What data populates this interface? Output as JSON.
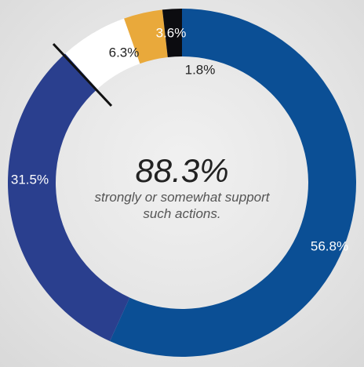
{
  "chart_data": {
    "type": "donut",
    "categories": [
      null,
      null,
      null,
      null,
      null
    ],
    "values": [
      56.8,
      31.5,
      6.3,
      3.6,
      1.8
    ],
    "value_labels": [
      "56.8%",
      "31.5%",
      "6.3%",
      "3.6%",
      "1.8%"
    ],
    "colors": [
      "#0b4f95",
      "#2a3f8e",
      "#ffffff",
      "#e9a93b",
      "#0c0c10"
    ],
    "center_value": "88.3%",
    "center_text": "strongly or somewhat support such actions."
  }
}
